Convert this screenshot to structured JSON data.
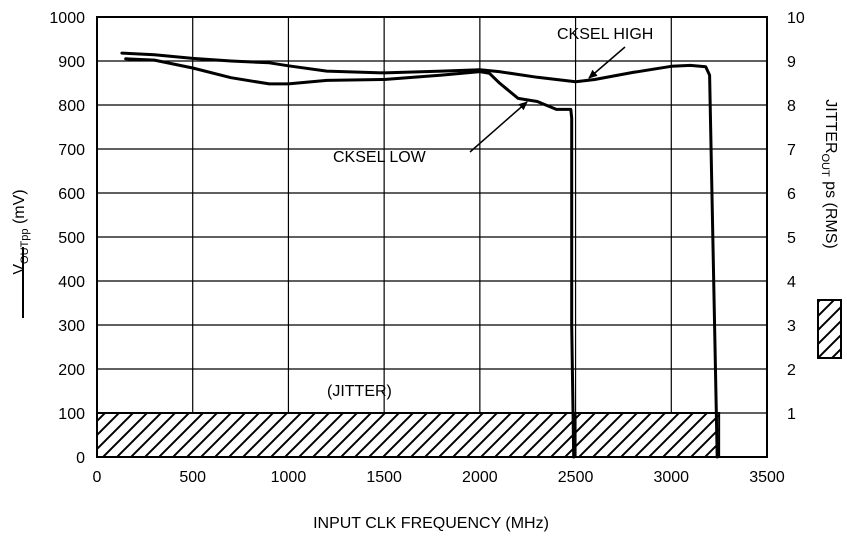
{
  "chart_data": {
    "type": "line",
    "xlabel": "INPUT CLK FREQUENCY (MHz)",
    "ylabel_left": {
      "main": "V",
      "sub": "OUTpp",
      "unit": " (mV)"
    },
    "ylabel_right": {
      "main": "JITTER",
      "sub": "OUT",
      "unit": " ps (RMS)"
    },
    "xlim": [
      0,
      3500
    ],
    "ylim_left": [
      0,
      1000
    ],
    "ylim_right": [
      0,
      10
    ],
    "x_ticks": [
      "0",
      "500",
      "1000",
      "1500",
      "2000",
      "2500",
      "3000",
      "3500"
    ],
    "y_left_ticks": [
      "0",
      "100",
      "200",
      "300",
      "400",
      "500",
      "600",
      "700",
      "800",
      "900",
      "1000"
    ],
    "y_right_ticks": [
      "1",
      "2",
      "3",
      "4",
      "5",
      "6",
      "7",
      "8",
      "9",
      "10"
    ],
    "grid": true,
    "series": [
      {
        "name": "CKSEL HIGH",
        "axis": "left",
        "x": [
          130,
          300,
          500,
          700,
          900,
          1000,
          1200,
          1500,
          1800,
          2000,
          2100,
          2300,
          2500,
          2600,
          2800,
          3000,
          3100,
          3180,
          3200,
          3240
        ],
        "y": [
          918,
          914,
          906,
          900,
          896,
          889,
          877,
          873,
          877,
          880,
          876,
          863,
          853,
          858,
          874,
          888,
          890,
          887,
          868,
          0
        ]
      },
      {
        "name": "CKSEL LOW",
        "axis": "left",
        "x": [
          150,
          300,
          500,
          700,
          900,
          1000,
          1200,
          1500,
          1800,
          2000,
          2050,
          2100,
          2200,
          2300,
          2400,
          2450,
          2475,
          2480,
          2480,
          2490
        ],
        "y": [
          905,
          902,
          884,
          862,
          848,
          848,
          856,
          858,
          868,
          876,
          872,
          851,
          815,
          808,
          790,
          790,
          790,
          770,
          300,
          0
        ]
      }
    ],
    "bars": [
      {
        "name": "(JITTER)",
        "axis": "right",
        "x_start": 0,
        "x_end": 2500,
        "value": 1
      },
      {
        "name": "(JITTER)",
        "axis": "right",
        "x_start": 2500,
        "x_end": 3250,
        "value": 1
      }
    ],
    "annotations": [
      {
        "text": "CKSEL HIGH",
        "points_to": "CKSEL HIGH"
      },
      {
        "text": "CKSEL LOW",
        "points_to": "CKSEL LOW"
      },
      {
        "text": "(JITTER)",
        "points_to": "jitter-bar"
      }
    ]
  }
}
